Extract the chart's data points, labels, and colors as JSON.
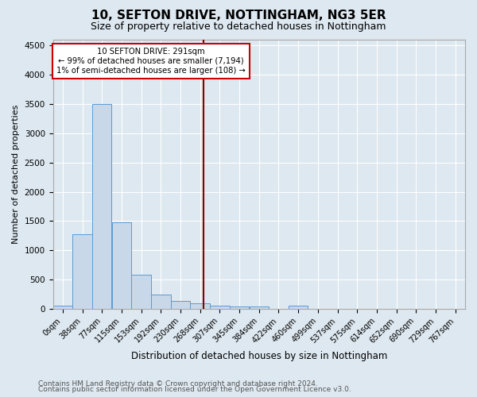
{
  "title": "10, SEFTON DRIVE, NOTTINGHAM, NG3 5ER",
  "subtitle": "Size of property relative to detached houses in Nottingham",
  "xlabel": "Distribution of detached houses by size in Nottingham",
  "ylabel": "Number of detached properties",
  "bar_labels": [
    "0sqm",
    "38sqm",
    "77sqm",
    "115sqm",
    "153sqm",
    "192sqm",
    "230sqm",
    "268sqm",
    "307sqm",
    "345sqm",
    "384sqm",
    "422sqm",
    "460sqm",
    "499sqm",
    "537sqm",
    "575sqm",
    "614sqm",
    "652sqm",
    "690sqm",
    "729sqm",
    "767sqm"
  ],
  "bar_heights": [
    50,
    1280,
    3500,
    1480,
    580,
    245,
    130,
    95,
    60,
    45,
    45,
    0,
    55,
    0,
    0,
    0,
    0,
    0,
    0,
    0,
    0
  ],
  "bar_color": "#c8d8e8",
  "bar_edge_color": "#5b9bd5",
  "vline_x_index": 7.7,
  "vline_color": "#8b0000",
  "annotation_title": "10 SEFTON DRIVE: 291sqm",
  "annotation_line1": "← 99% of detached houses are smaller (7,194)",
  "annotation_line2": "1% of semi-detached houses are larger (108) →",
  "annotation_box_color": "#ffffff",
  "annotation_border_color": "#cc0000",
  "ylim": [
    0,
    4600
  ],
  "yticks": [
    0,
    500,
    1000,
    1500,
    2000,
    2500,
    3000,
    3500,
    4000,
    4500
  ],
  "footnote1": "Contains HM Land Registry data © Crown copyright and database right 2024.",
  "footnote2": "Contains public sector information licensed under the Open Government Licence v3.0.",
  "bg_color": "#dde8f0",
  "plot_bg_color": "#dde8f0",
  "bin_width": 38,
  "title_fontsize": 11,
  "subtitle_fontsize": 9,
  "ylabel_fontsize": 8,
  "xlabel_fontsize": 8.5,
  "tick_fontsize": 7,
  "footnote_fontsize": 6.5
}
